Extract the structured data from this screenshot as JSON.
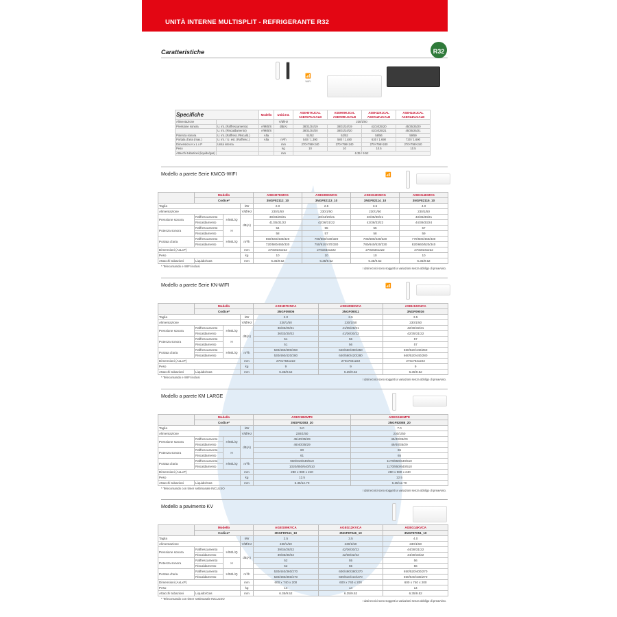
{
  "header": {
    "title": "UNITÀ INTERNE MULTISPLIT - REFRIGERANTE R32",
    "badge": "R32"
  },
  "caratteristiche": "Caratteristiche",
  "wifi_label": "WiFi",
  "colors": {
    "brand_red": "#e30613",
    "model_red": "#c8102e",
    "badge_green": "#2f7a3a"
  },
  "specifiche": {
    "title": "Specifiche",
    "modello": "Modello",
    "unita_int": "Unità Int.",
    "models": [
      [
        "ASEH07KJCAL",
        "ASEH07KJCALB"
      ],
      [
        "ASEH09KJCAL",
        "ASEH09KJCALB"
      ],
      [
        "ASEH12KJCAL",
        "ASEH12KJCALB"
      ],
      [
        "ASEH14KJCAL",
        "ASEH14KJCALB"
      ]
    ],
    "rows": [
      {
        "label": "Alimentazione",
        "sub": "",
        "level": "",
        "unit": "V/Ø/Hz",
        "merged": "230/1/50"
      },
      {
        "label": "Pressione sonora",
        "sub": "U. int. (Raffrescamento)",
        "level": "A/M/B/S",
        "unit": "dB(A)",
        "values": [
          "38/31/24/19",
          "38/31/24/19",
          "41/34/25/20",
          "45/35/25/20"
        ]
      },
      {
        "label": "",
        "sub": "U. int. (Riscaldamento)",
        "level": "A/M/B/S",
        "unit": "",
        "values": [
          "38/31/24/20",
          "38/31/24/20",
          "41/34/25/21",
          "45/35/25/21"
        ]
      },
      {
        "label": "Potenza sonora",
        "sub": "U. int. (Raffresc./Riscald.)",
        "level": "Alta",
        "unit": "",
        "values": [
          "51/52",
          "52/52",
          "58/56",
          "59/59"
        ]
      },
      {
        "label": "Portata d'aria (max.)",
        "sub": "U. int. / U. est. (Raffresc.)",
        "level": "Alta",
        "unit": "m³/h",
        "values": [
          "540 / 1.390",
          "580 / 1.480",
          "630 / 1.690",
          "720 / 1.690"
        ]
      },
      {
        "label": "Dimensioni  A x L x P",
        "sub": "Unità interna",
        "level": "",
        "unit": "mm",
        "values": [
          "270×798×240",
          "270×798×240",
          "270×798×240",
          "270×798×240"
        ]
      },
      {
        "label": "Peso",
        "sub": "",
        "level": "",
        "unit": "kg",
        "values": [
          "10",
          "10",
          "10.5",
          "10.5"
        ]
      },
      {
        "label": "Attacchi tubazioni (liquido/gas)",
        "sub": "",
        "level": "",
        "unit": "mm",
        "merged": "6.35 / 9.52"
      }
    ]
  },
  "labels": {
    "modello": "Modello",
    "codice": "Codice*",
    "taglia": "Taglia",
    "alimentazione": "Alimentazione",
    "pressione": "Pressione sonora",
    "potenza": "Potenza sonora",
    "portata": "Portata d'aria",
    "raff": "Raffrescamento",
    "risc": "Riscaldamento",
    "hmlq": "H/M/L/Q",
    "h": "H",
    "dimensioni": "Dimensioni (AxLxP)",
    "peso": "Peso",
    "attacchi": "Attacchi tubazioni",
    "liqgas": "Liquido/Gas",
    "u_kw": "kW",
    "u_v": "V/Ø/Hz",
    "u_db": "dB(A)",
    "u_m3": "m³/h",
    "u_mm": "mm",
    "u_kg": "kg",
    "disclaimer": "I dati tecnici sono soggetti a variazioni senza obbligo di preavviso."
  },
  "sections": [
    {
      "title": "Modello a parete Serie KMCG-WIFI",
      "note": "* Telecomando e WIFI inclusi",
      "wifi": true,
      "models": [
        "ASEH07KMCG",
        "ASEH09KMCG",
        "ASEH12KMCG",
        "ASEH14KMCG"
      ],
      "codes": [
        "3NGF82112_10",
        "3NGF82113_10",
        "3NGF82114_10",
        "3NGF82115_10"
      ],
      "taglia": [
        "2.0",
        "2.5",
        "3.5",
        "4.0"
      ],
      "alim": [
        "230/1/50",
        "230/1/50",
        "230/1/50",
        "230/1/50"
      ],
      "press_raff": [
        "38/33/29/21",
        "40/34/29/21",
        "40/35/30/21",
        "43/36/30/21"
      ],
      "press_risc": [
        "41/35/31/22",
        "42/36/31/22",
        "42/38/33/22",
        "44/39/33/24"
      ],
      "pot_raff": [
        "54",
        "55",
        "55",
        "57"
      ],
      "pot_risc": [
        "58",
        "57",
        "58",
        "59"
      ],
      "port_raff": [
        "650/540/430/320",
        "700/560/430/320",
        "700/580/430/320",
        "770/600/450/330"
      ],
      "port_risc": [
        "720/580/460/330",
        "750/610/470/330",
        "780/640/520/330",
        "820/660/520/340"
      ],
      "dim": [
        "270x834x222",
        "270x834x222",
        "270x834x222",
        "270x834x222"
      ],
      "peso": [
        "10",
        "10",
        "10",
        "10"
      ],
      "att": [
        "6.35/9.52",
        "6.35/9.52",
        "6.35/9.52",
        "6.35/9.52"
      ]
    },
    {
      "title": "Modello a parete Serie KN-WIFI",
      "note": "* Telecomando e WIFI inclusi",
      "wifi": true,
      "models": [
        "ASEH07KNCA",
        "ASEH09KNCA",
        "ASEH12KNCA"
      ],
      "codes": [
        "3NGF09006",
        "3NGF09011",
        "3NGF09016"
      ],
      "taglia": [
        "2.0",
        "2.5",
        "3.5"
      ],
      "alim": [
        "230/1/50",
        "230/1/50",
        "230/1/50"
      ],
      "press_raff": [
        "36/33/29/21",
        "41/35/29/21",
        "42/36/32/21"
      ],
      "press_risc": [
        "36/33/30/22",
        "41/36/30/22",
        "42/35/31/22"
      ],
      "pot_raff": [
        "51",
        "56",
        "57"
      ],
      "pot_risc": [
        "51",
        "56",
        "57"
      ],
      "port_raff": [
        "530/460/390/250",
        "640/560/390/250",
        "660/520/440/250"
      ],
      "port_risc": [
        "530/460/420/280",
        "640/560/420/280",
        "660/520/440/280"
      ],
      "dim": [
        "270x784x222",
        "270x784x222",
        "270x784x222"
      ],
      "peso": [
        "9",
        "9",
        "9"
      ],
      "att": [
        "6.35/9.52",
        "6.35/9.52",
        "6.35/9.52"
      ]
    },
    {
      "title": "Modello a parete KM LARGE",
      "note": "* Telecomando con timer settimanale INCLUSO",
      "wifi": false,
      "models": [
        "ASEG18KMTE",
        "ASEG24KMTE"
      ],
      "codes": [
        "3NGF82083_20",
        "3NGF82088_20"
      ],
      "taglia": [
        "5.0",
        "7.0"
      ],
      "alim": [
        "230/1/50",
        "230/1/50"
      ],
      "press_raff": [
        "45/40/35/29",
        "49/40/35/29"
      ],
      "press_risc": [
        "46/40/35/29",
        "49/40/35/29"
      ],
      "pot_raff": [
        "60",
        "65"
      ],
      "pot_risc": [
        "61",
        "65"
      ],
      "port_raff": [
        "960/810/640/510",
        "1170/850/640/510"
      ],
      "port_risc": [
        "1020/850/640/510",
        "1170/850/640/510"
      ],
      "dim": [
        "280 x 980 x 240",
        "280 x 980 x 240"
      ],
      "peso": [
        "12.5",
        "12.5"
      ],
      "att": [
        "6.35/12.70",
        "6.35/12.70"
      ]
    },
    {
      "title": "Modello a pavimento KV",
      "note": "* Telecomando con timer settimanale INCLUSO",
      "wifi": false,
      "models": [
        "AGEG09KVCA",
        "AGEG12KVCA",
        "AGEG14KVCA"
      ],
      "codes": [
        "3NGF87041_10",
        "3NGF87046_10",
        "3NGF87051_10"
      ],
      "taglia": [
        "2.5",
        "3.5",
        "4.0"
      ],
      "alim": [
        "230/1/50",
        "230/1/50",
        "230/1/50"
      ],
      "press_raff": [
        "39/34/28/22",
        "42/36/30/22",
        "44/38/31/22"
      ],
      "press_risc": [
        "39/35/30/22",
        "42/38/32/22",
        "44/38/33/22"
      ],
      "pot_raff": [
        "52",
        "55",
        "56"
      ],
      "pot_risc": [
        "52",
        "55",
        "56"
      ],
      "port_raff": [
        "530/440/360/270",
        "600/490/380/270",
        "650/520/400/270"
      ],
      "port_risc": [
        "530/460/360/270",
        "600/510/410/270",
        "650/540/430/270"
      ],
      "dim": [
        "600 x 740 x 200",
        "600 x 740 x 200",
        "600 x 740 x 200"
      ],
      "peso": [
        "14",
        "14",
        "14"
      ],
      "att": [
        "6.35/9.52",
        "6.35/9.52",
        "6.35/9.52"
      ]
    }
  ]
}
